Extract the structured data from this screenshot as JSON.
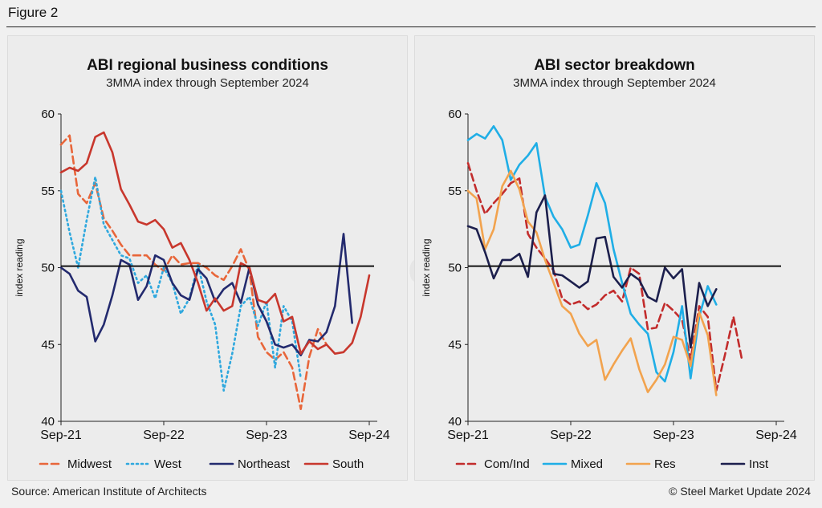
{
  "figure_label": "Figure 2",
  "source": "Source: American Institute of Architects",
  "copyright": "© Steel Market Update 2024",
  "watermark": "Steel Market Update",
  "colors": {
    "midwest": "#e8663a",
    "west": "#2fa8de",
    "northeast": "#232a6e",
    "south": "#c8372d",
    "com_ind": "#c22c2c",
    "mixed": "#1faee6",
    "res": "#f2a34e",
    "inst": "#1c1f4d",
    "reference": "#111111"
  },
  "chart_data": [
    {
      "type": "line",
      "title": "ABI regional business conditions",
      "subtitle": "3MMA index through September 2024",
      "xlabel": "",
      "ylabel": "index reading",
      "ylim": [
        40,
        60
      ],
      "yticks": [
        40,
        45,
        50,
        55,
        60
      ],
      "xticks": [
        "Sep-21",
        "Sep-22",
        "Sep-23",
        "Sep-24"
      ],
      "xtick_index": [
        0,
        12,
        24,
        36
      ],
      "reference_line": 50.1,
      "series": [
        {
          "name": "Midwest",
          "style": "dashed",
          "color_key": "midwest",
          "values": [
            58.0,
            58.6,
            54.8,
            54.2,
            55.5,
            53.2,
            52.4,
            51.5,
            50.8,
            50.8,
            50.8,
            50.2,
            49.8,
            50.8,
            50.2,
            50.3,
            50.3,
            50.0,
            49.5,
            49.2,
            50.1,
            51.2,
            49.8,
            45.5,
            44.5,
            44.0,
            44.5,
            43.5,
            40.8,
            44.2,
            46.0,
            45.0
          ]
        },
        {
          "name": "West",
          "style": "dotted",
          "color_key": "west",
          "values": [
            55.0,
            52.3,
            50.0,
            53.1,
            55.9,
            52.8,
            51.8,
            50.8,
            50.6,
            49.0,
            49.5,
            48.0,
            50.0,
            49.0,
            47.0,
            48.0,
            50.2,
            47.8,
            46.3,
            42.0,
            44.4,
            47.5,
            48.1,
            46.2,
            47.8,
            43.5,
            47.5,
            46.5,
            42.8
          ]
        },
        {
          "name": "Northeast",
          "style": "solid",
          "color_key": "northeast",
          "values": [
            50.0,
            49.6,
            48.5,
            48.1,
            45.2,
            46.3,
            48.2,
            50.5,
            50.2,
            47.9,
            48.8,
            50.8,
            50.5,
            49.0,
            48.2,
            47.9,
            49.9,
            49.3,
            47.8,
            48.6,
            49.0,
            47.7,
            50.0,
            47.6,
            46.5,
            45.0,
            44.8,
            45.0,
            44.3,
            45.3,
            45.2,
            45.8,
            47.5,
            52.2,
            46.4
          ]
        },
        {
          "name": "South",
          "style": "solid",
          "color_key": "south",
          "values": [
            56.2,
            56.5,
            56.3,
            56.8,
            58.5,
            58.8,
            57.5,
            55.1,
            54.1,
            53.0,
            52.8,
            53.1,
            52.5,
            51.3,
            51.6,
            50.5,
            49.0,
            47.2,
            48.0,
            47.2,
            47.5,
            50.3,
            50.0,
            47.9,
            47.7,
            48.3,
            46.5,
            46.8,
            44.4,
            45.2,
            44.7,
            45.0,
            44.4,
            44.5,
            45.1,
            46.8,
            49.5
          ]
        }
      ]
    },
    {
      "type": "line",
      "title": "ABI sector breakdown",
      "subtitle": "3MMA index through September 2024",
      "xlabel": "",
      "ylabel": "index reading",
      "ylim": [
        40,
        60
      ],
      "yticks": [
        40,
        45,
        50,
        55,
        60
      ],
      "xticks": [
        "Sep-21",
        "Sep-22",
        "Sep-23",
        "Sep-24"
      ],
      "xtick_index": [
        0,
        12,
        24,
        36
      ],
      "reference_line": 50.1,
      "series": [
        {
          "name": "Com/Ind",
          "style": "dashed",
          "color_key": "com_ind",
          "values": [
            56.8,
            55.0,
            53.5,
            54.2,
            54.8,
            55.5,
            55.8,
            52.2,
            51.3,
            50.6,
            49.8,
            48.0,
            47.6,
            47.8,
            47.3,
            47.6,
            48.2,
            48.5,
            47.8,
            50.0,
            49.6,
            46.0,
            46.1,
            47.7,
            47.2,
            46.6,
            44.0,
            47.5,
            46.8,
            42.0,
            44.3,
            46.8,
            44.0
          ]
        },
        {
          "name": "Mixed",
          "style": "solid",
          "color_key": "mixed",
          "values": [
            58.3,
            58.7,
            58.4,
            59.2,
            58.3,
            55.7,
            56.7,
            57.3,
            58.1,
            54.6,
            53.3,
            52.5,
            51.3,
            51.5,
            53.4,
            55.5,
            54.2,
            51.2,
            49.0,
            47.0,
            46.3,
            45.7,
            43.2,
            42.6,
            44.5,
            47.5,
            42.8,
            46.8,
            48.8,
            47.6
          ]
        },
        {
          "name": "Res",
          "style": "solid",
          "color_key": "res",
          "values": [
            55.0,
            54.5,
            51.2,
            52.5,
            55.3,
            56.3,
            55.1,
            53.0,
            52.3,
            50.5,
            49.0,
            47.5,
            47.0,
            45.7,
            44.9,
            45.3,
            42.7,
            43.7,
            44.6,
            45.4,
            43.4,
            41.9,
            42.7,
            43.7,
            45.5,
            45.3,
            43.6,
            47.1,
            45.6,
            41.7
          ]
        },
        {
          "name": "Inst",
          "style": "solid",
          "color_key": "inst",
          "values": [
            52.7,
            52.5,
            51.0,
            49.3,
            50.5,
            50.5,
            50.9,
            49.4,
            53.6,
            54.7,
            49.6,
            49.5,
            49.1,
            48.7,
            49.1,
            51.9,
            52.0,
            49.4,
            48.7,
            49.6,
            49.2,
            48.1,
            47.8,
            50.0,
            49.3,
            49.9,
            44.8,
            49.0,
            47.5,
            48.6
          ]
        }
      ]
    }
  ]
}
